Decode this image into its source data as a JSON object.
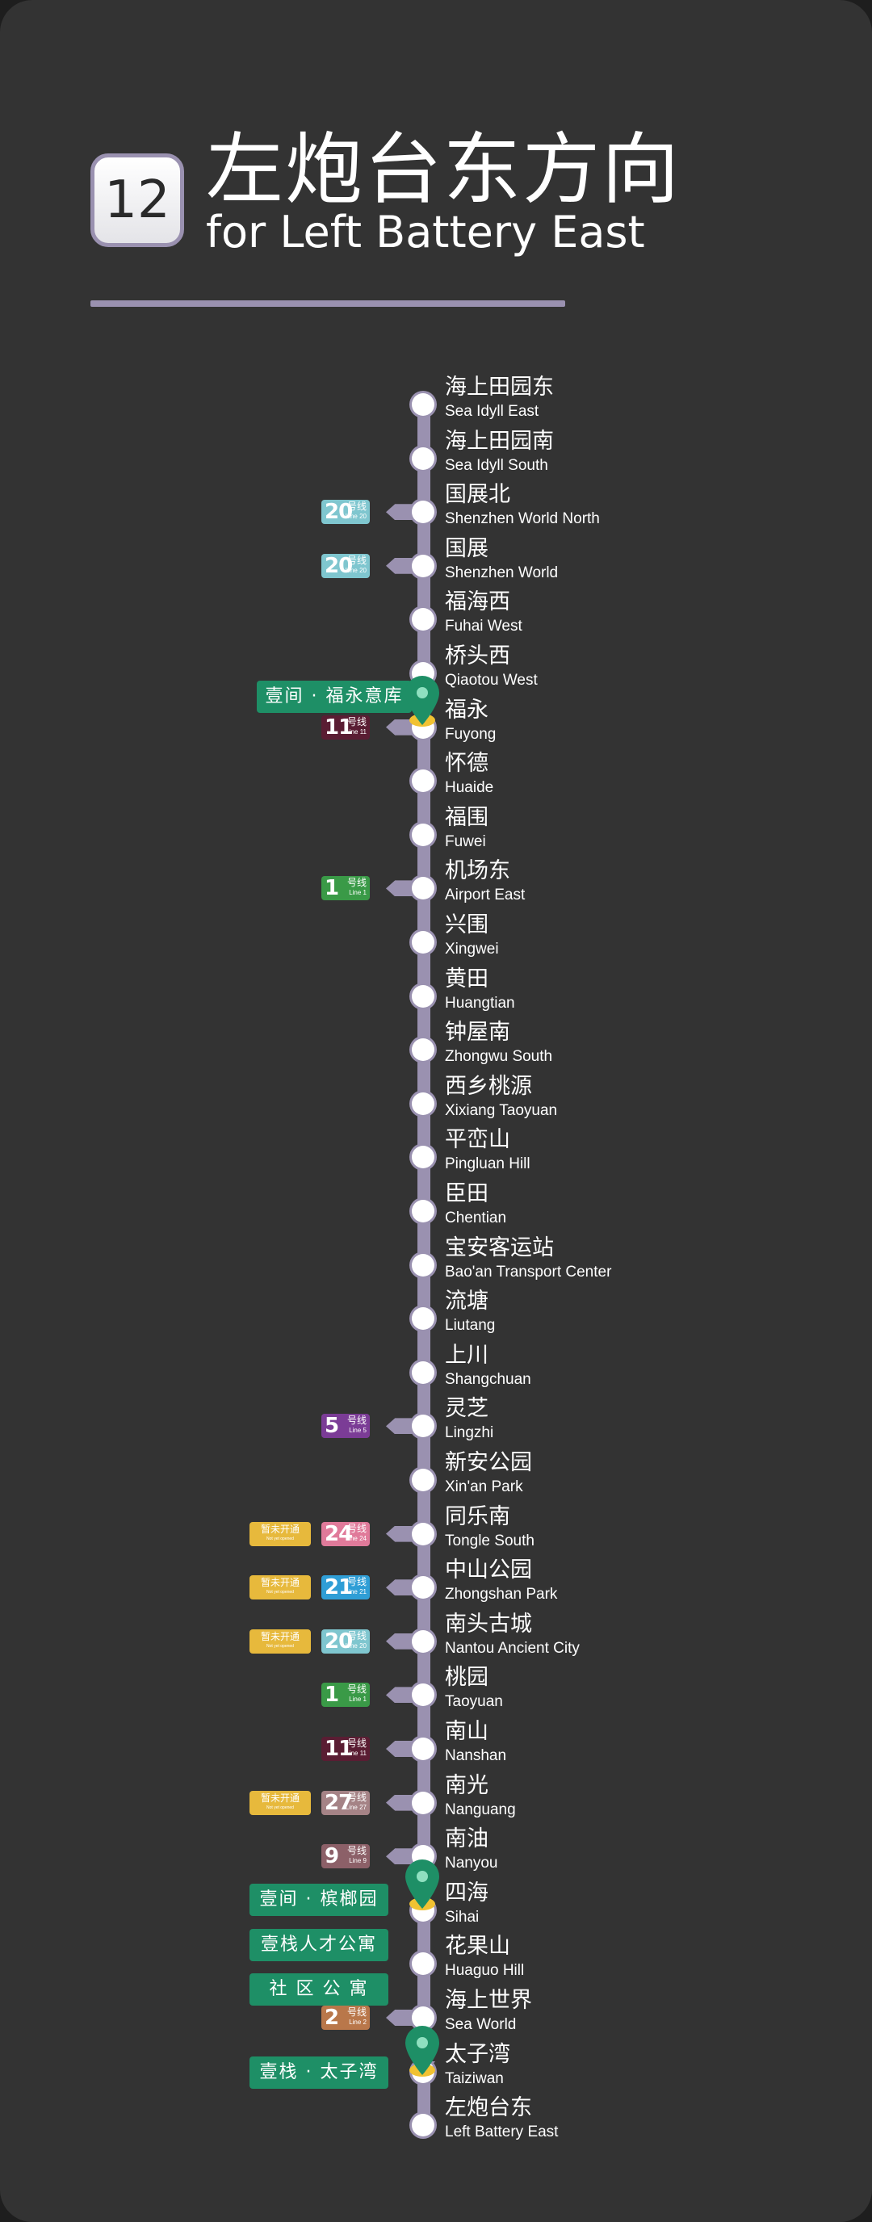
{
  "header": {
    "line_number": "12",
    "title_zh": "左炮台东方向",
    "title_en": "for Left Battery East"
  },
  "colors": {
    "background": "#333333",
    "line_accent": "#9a91b0",
    "promo_green": "#1e8f66",
    "soon_yellow": "#e7b93c"
  },
  "stations": [
    {
      "zh": "海上田园东",
      "en": "Sea Idyll East"
    },
    {
      "zh": "海上田园南",
      "en": "Sea Idyll South"
    },
    {
      "zh": "国展北",
      "en": "Shenzhen World North",
      "transfer": {
        "num": "20",
        "hx": "号线",
        "en": "Line 20",
        "color": "#7fc6cf"
      }
    },
    {
      "zh": "国展",
      "en": "Shenzhen World",
      "transfer": {
        "num": "20",
        "hx": "号线",
        "en": "Line 20",
        "color": "#7fc6cf"
      }
    },
    {
      "zh": "福海西",
      "en": "Fuhai West"
    },
    {
      "zh": "桥头西",
      "en": "Qiaotou West"
    },
    {
      "zh": "福永",
      "en": "Fuyong",
      "transfer": {
        "num": "11",
        "hx": "号线",
        "en": "Line 11",
        "color": "#5a1d33"
      }
    },
    {
      "zh": "怀德",
      "en": "Huaide"
    },
    {
      "zh": "福围",
      "en": "Fuwei"
    },
    {
      "zh": "机场东",
      "en": "Airport East",
      "transfer": {
        "num": "1",
        "hx": "号线",
        "en": "Line 1",
        "color": "#3a9a47"
      }
    },
    {
      "zh": "兴围",
      "en": "Xingwei"
    },
    {
      "zh": "黄田",
      "en": "Huangtian"
    },
    {
      "zh": "钟屋南",
      "en": "Zhongwu South"
    },
    {
      "zh": "西乡桃源",
      "en": "Xixiang Taoyuan"
    },
    {
      "zh": "平峦山",
      "en": "Pingluan Hill"
    },
    {
      "zh": "臣田",
      "en": "Chentian"
    },
    {
      "zh": "宝安客运站",
      "en": "Bao'an Transport Center"
    },
    {
      "zh": "流塘",
      "en": "Liutang"
    },
    {
      "zh": "上川",
      "en": "Shangchuan"
    },
    {
      "zh": "灵芝",
      "en": "Lingzhi",
      "transfer": {
        "num": "5",
        "hx": "号线",
        "en": "Line 5",
        "color": "#7b3c96"
      }
    },
    {
      "zh": "新安公园",
      "en": "Xin'an Park"
    },
    {
      "zh": "同乐南",
      "en": "Tongle South",
      "soon": true,
      "transfer": {
        "num": "24",
        "hx": "号线",
        "en": "Line 24",
        "color": "#e07a9a"
      }
    },
    {
      "zh": "中山公园",
      "en": "Zhongshan Park",
      "soon": true,
      "transfer": {
        "num": "21",
        "hx": "号线",
        "en": "Line 21",
        "color": "#2f9ed6"
      }
    },
    {
      "zh": "南头古城",
      "en": "Nantou Ancient City",
      "soon": true,
      "transfer": {
        "num": "20",
        "hx": "号线",
        "en": "Line 20",
        "color": "#7fc6cf"
      }
    },
    {
      "zh": "桃园",
      "en": "Taoyuan",
      "transfer": {
        "num": "1",
        "hx": "号线",
        "en": "Line 1",
        "color": "#3a9a47"
      }
    },
    {
      "zh": "南山",
      "en": "Nanshan",
      "transfer": {
        "num": "11",
        "hx": "号线",
        "en": "Line 11",
        "color": "#5a1d33"
      }
    },
    {
      "zh": "南光",
      "en": "Nanguang",
      "soon": true,
      "transfer": {
        "num": "27",
        "hx": "号线",
        "en": "Line 27",
        "color": "#a58386"
      }
    },
    {
      "zh": "南油",
      "en": "Nanyou",
      "transfer": {
        "num": "9",
        "hx": "号线",
        "en": "Line 9",
        "color": "#8c6068"
      }
    },
    {
      "zh": "四海",
      "en": "Sihai"
    },
    {
      "zh": "花果山",
      "en": "Huaguo Hill"
    },
    {
      "zh": "海上世界",
      "en": "Sea World",
      "transfer": {
        "num": "2",
        "hx": "号线",
        "en": "Line 2",
        "color": "#b9774a"
      }
    },
    {
      "zh": "太子湾",
      "en": "Taiziwan"
    },
    {
      "zh": "左炮台东",
      "en": "Left Battery East"
    }
  ],
  "soon_label": {
    "zh": "暂未开通",
    "en": "Not yet opened"
  },
  "promos": [
    {
      "text": "壹间 · 福永意库"
    },
    {
      "text": "壹间 · 槟榔园"
    },
    {
      "text": "壹栈人才公寓"
    },
    {
      "text": "社 区 公 寓"
    },
    {
      "text": "壹栈 · 太子湾"
    }
  ]
}
